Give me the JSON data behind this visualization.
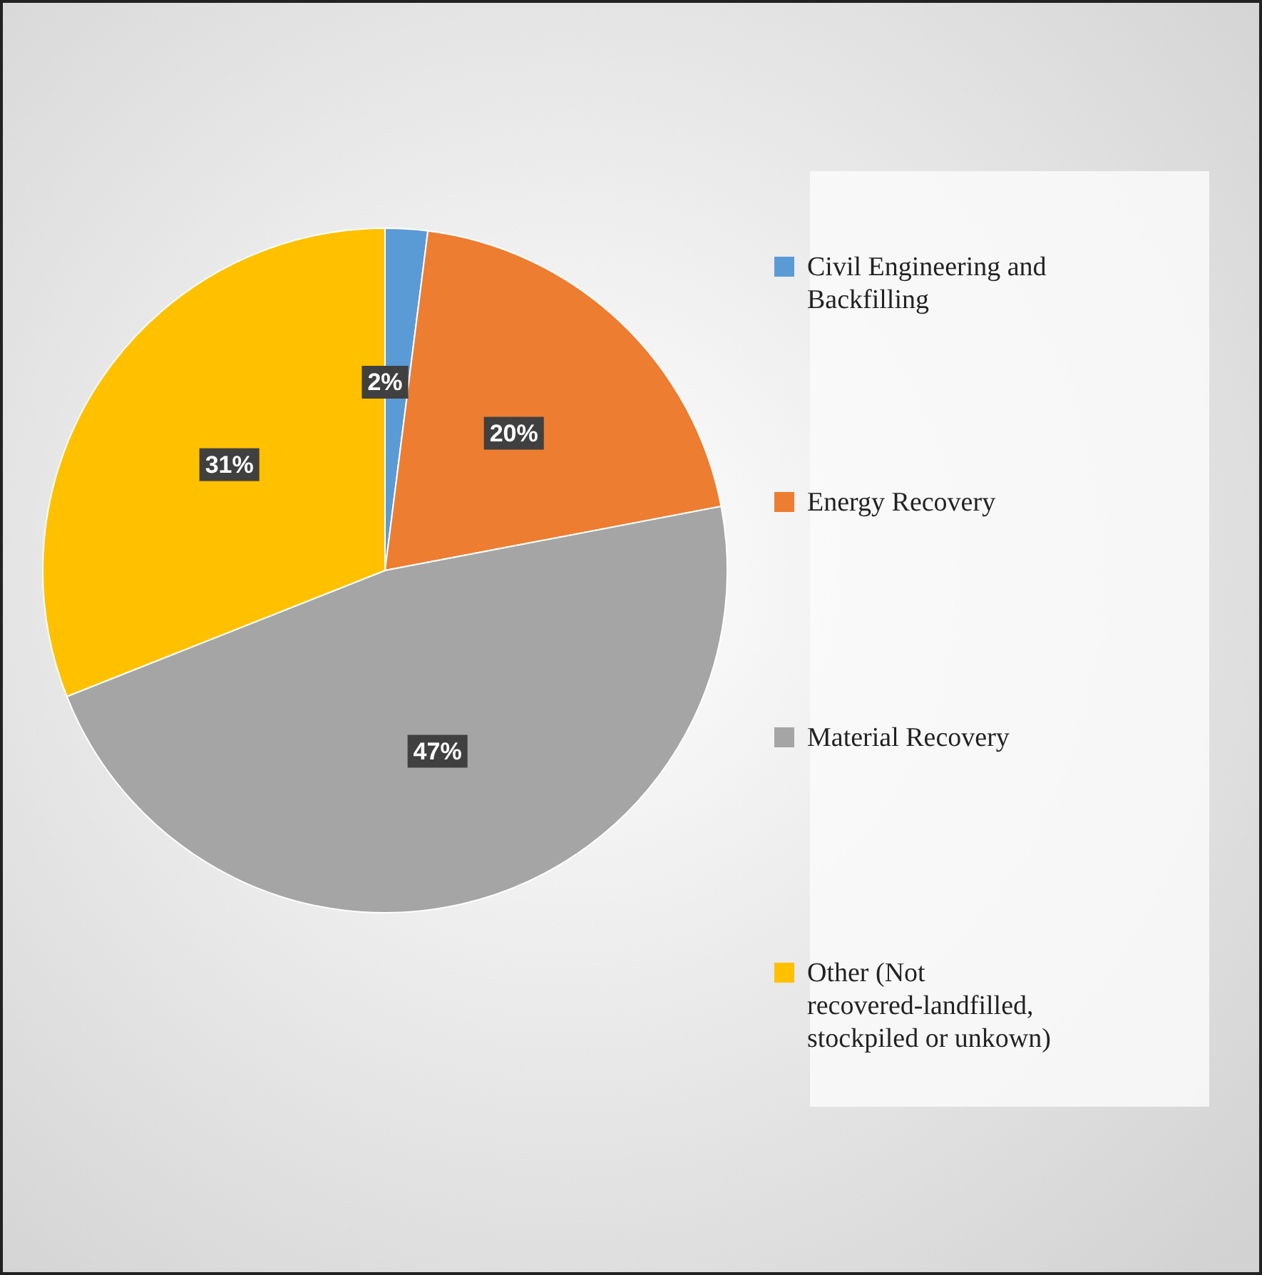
{
  "chart_data": {
    "type": "pie",
    "categories": [
      "Civil Engineering and Backfilling",
      "Energy Recovery",
      "Material Recovery",
      "Other (Not recovered-landfilled, stockpiled or unkown)"
    ],
    "values": [
      2,
      20,
      47,
      31
    ],
    "colors": [
      "#5b9bd5",
      "#ed7d31",
      "#a5a5a5",
      "#ffc000"
    ],
    "value_labels": [
      "2%",
      "20%",
      "47%",
      "31%"
    ],
    "legend": "right"
  }
}
